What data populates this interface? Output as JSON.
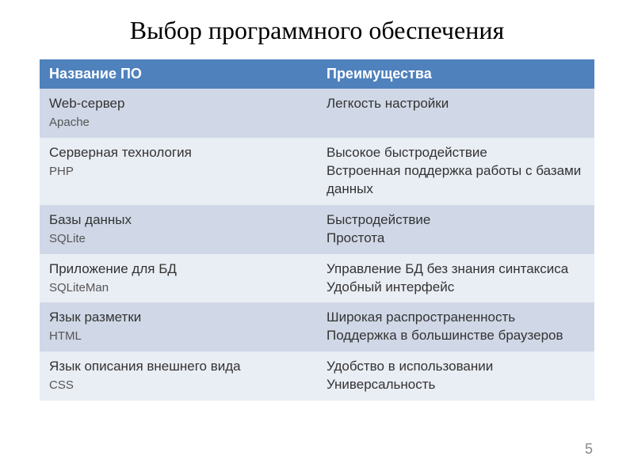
{
  "title": "Выбор программного обеспечения",
  "page_number": "5",
  "table": {
    "header_bg": "#4f81bd",
    "header_fg": "#ffffff",
    "row_odd_bg": "#d0d8e7",
    "row_even_bg": "#e9edf4",
    "columns": [
      "Название ПО",
      "Преимущества"
    ],
    "rows": [
      {
        "name_line1": "Web-сервер",
        "name_line2": "Apache",
        "adv_line1": "Легкость настройки",
        "adv_line2": ""
      },
      {
        "name_line1": "Серверная технология",
        "name_line2": "PHP",
        "adv_line1": "Высокое быстродействие",
        "adv_line2": "Встроенная поддержка работы с базами данных"
      },
      {
        "name_line1": "Базы данных",
        "name_line2": "SQLite",
        "adv_line1": "Быстродействие",
        "adv_line2": "Простота"
      },
      {
        "name_line1": "Приложение для БД",
        "name_line2": "SQLiteMan",
        "adv_line1": "Управление БД без знания синтаксиса",
        "adv_line2": "Удобный интерфейс"
      },
      {
        "name_line1": "Язык разметки",
        "name_line2": "HTML",
        "adv_line1": "Широкая распространенность",
        "adv_line2": "Поддержка в большинстве браузеров"
      },
      {
        "name_line1": "Язык описания внешнего вида",
        "name_line2": "CSS",
        "adv_line1": "Удобство в использовании",
        "adv_line2": "Универсальность"
      }
    ]
  }
}
